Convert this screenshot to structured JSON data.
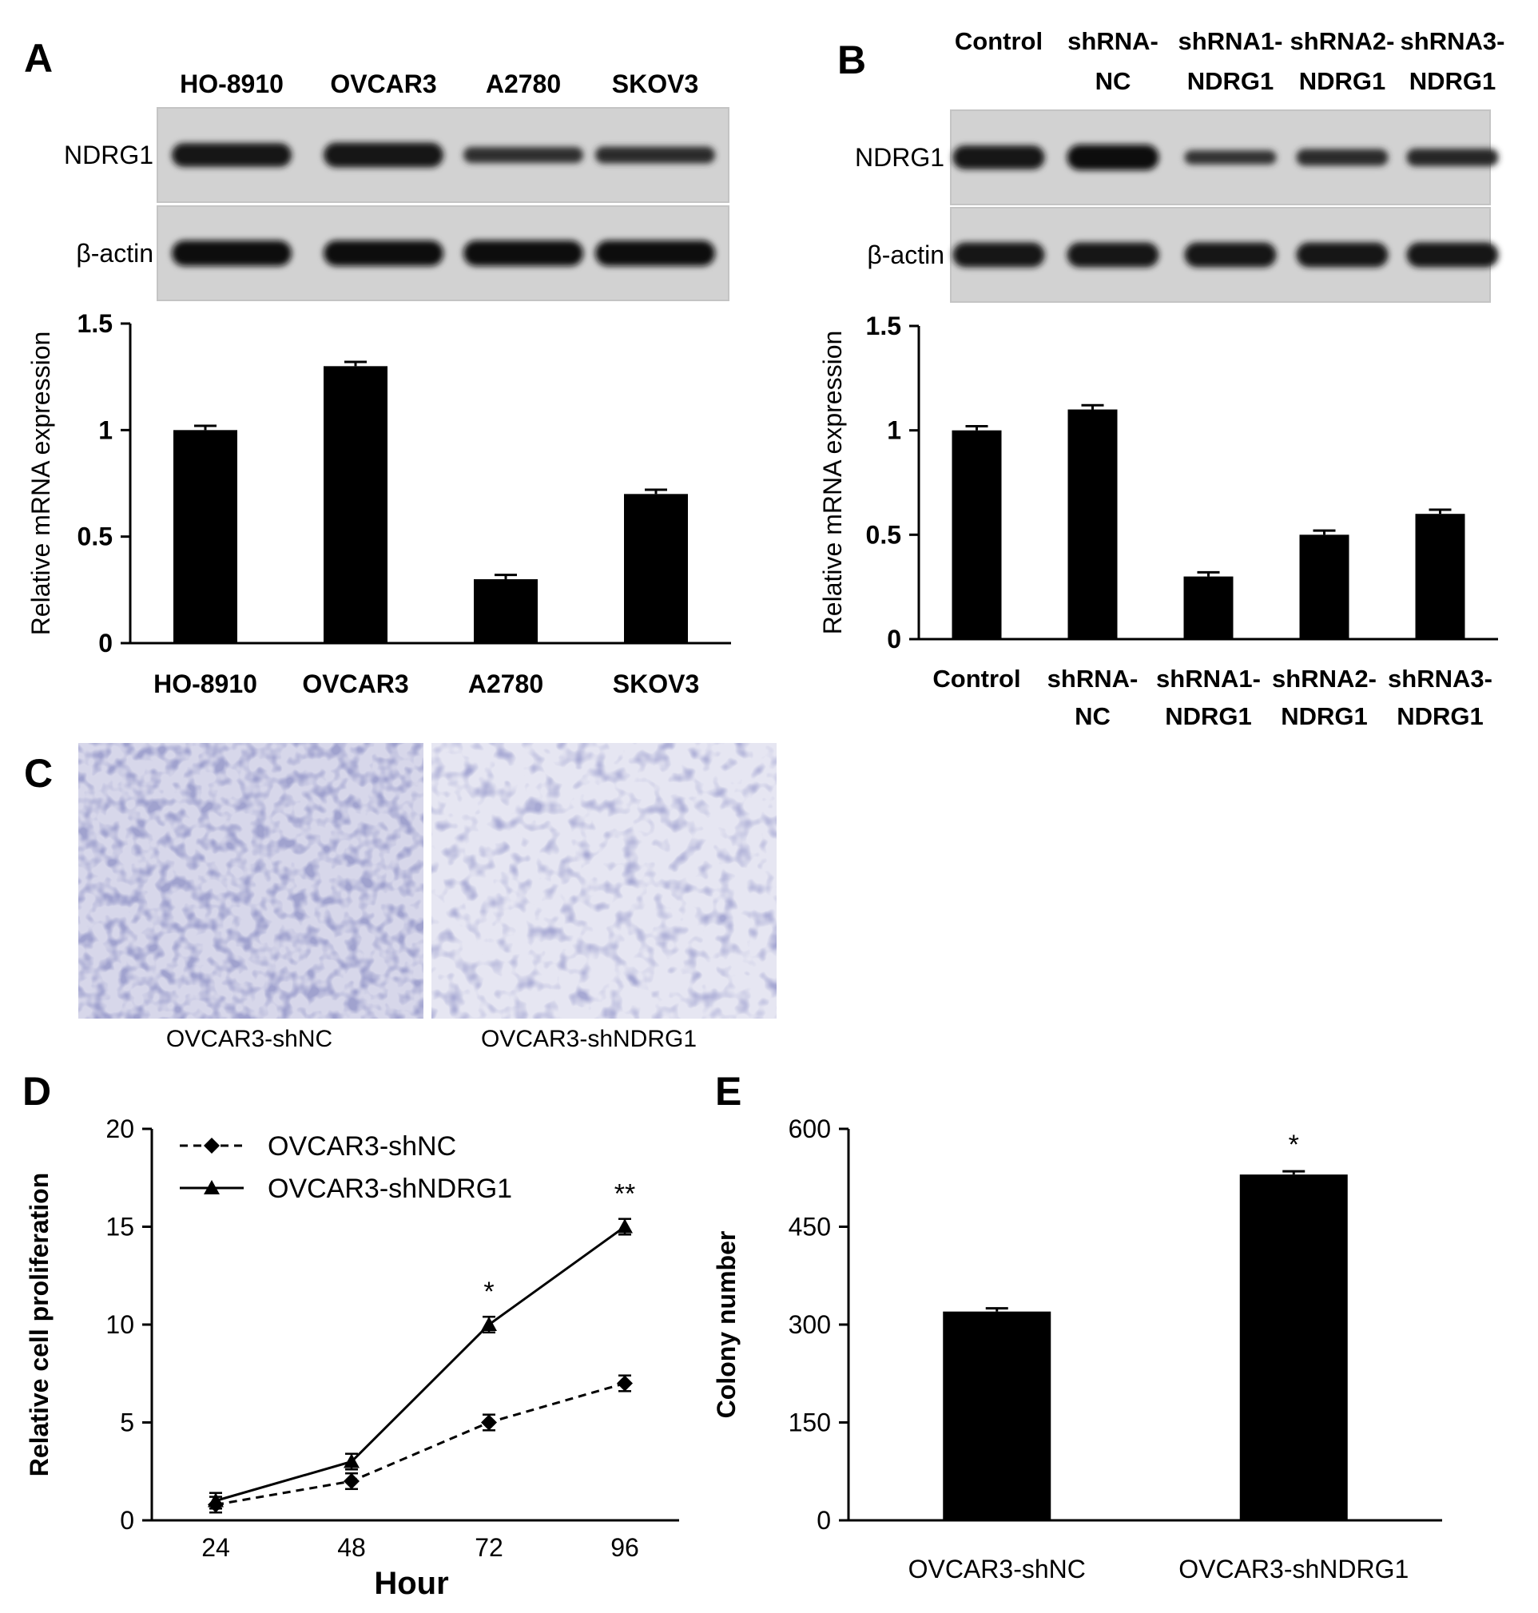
{
  "panels": {
    "A": {
      "letter": "A",
      "blot": {
        "lanes": [
          "HO-8910",
          "OVCAR3",
          "A2780",
          "SKOV3"
        ],
        "rows": [
          {
            "label": "NDRG1",
            "intensity": [
              0.9,
              0.95,
              0.45,
              0.5
            ]
          },
          {
            "label": "β-actin",
            "intensity": [
              1,
              1,
              1,
              1
            ]
          }
        ]
      }
    },
    "B": {
      "letter": "B",
      "blot": {
        "lanes": [
          [
            "Control"
          ],
          [
            "shRNA-",
            "NC"
          ],
          [
            "shRNA1-",
            "NDRG1"
          ],
          [
            "shRNA2-",
            "NDRG1"
          ],
          [
            "shRNA3-",
            "NDRG1"
          ]
        ],
        "rows": [
          {
            "label": "NDRG1",
            "intensity": [
              0.9,
              1,
              0.35,
              0.5,
              0.55
            ]
          },
          {
            "label": "β-actin",
            "intensity": [
              0.95,
              0.95,
              0.95,
              0.95,
              0.95
            ]
          }
        ]
      }
    },
    "C": {
      "letter": "C",
      "images": [
        "OVCAR3-shNC",
        "OVCAR3-shNDRG1"
      ]
    },
    "D": {
      "letter": "D"
    },
    "E": {
      "letter": "E"
    }
  },
  "chart_data": [
    {
      "panel": "A",
      "type": "bar",
      "categories": [
        "HO-8910",
        "OVCAR3",
        "A2780",
        "SKOV3"
      ],
      "values": [
        1.0,
        1.3,
        0.3,
        0.7
      ],
      "errors": [
        0.02,
        0.02,
        0.02,
        0.02
      ],
      "ylabel": "Relative mRNA expression",
      "ylim": [
        0,
        1.5
      ],
      "yticks": [
        0,
        0.5,
        1,
        1.5
      ],
      "ytick_labels": [
        "0",
        "0.5",
        "1",
        "1.5"
      ],
      "grid": false
    },
    {
      "panel": "B",
      "type": "bar",
      "categories": [
        [
          "Control"
        ],
        [
          "shRNA-",
          "NC"
        ],
        [
          "shRNA1-",
          "NDRG1"
        ],
        [
          "shRNA2-",
          "NDRG1"
        ],
        [
          "shRNA3-",
          "NDRG1"
        ]
      ],
      "values": [
        1.0,
        1.1,
        0.3,
        0.5,
        0.6
      ],
      "errors": [
        0.02,
        0.02,
        0.02,
        0.02,
        0.02
      ],
      "ylabel": "Relative mRNA expression",
      "ylim": [
        0,
        1.5
      ],
      "yticks": [
        0,
        0.5,
        1,
        1.5
      ],
      "ytick_labels": [
        "0",
        "0.5",
        "1",
        "1.5"
      ],
      "grid": false
    },
    {
      "panel": "D",
      "type": "line",
      "x": [
        24,
        48,
        72,
        96
      ],
      "xlabel": "Hour",
      "ylabel": "Relative cell proliferation",
      "ylim": [
        0,
        20
      ],
      "yticks": [
        0,
        5,
        10,
        15,
        20
      ],
      "series": [
        {
          "name": "OVCAR3-shNC",
          "values": [
            0.8,
            2,
            5,
            7
          ],
          "errors": [
            0.4,
            0.4,
            0.4,
            0.4
          ],
          "style": "dashed",
          "marker": "diamond"
        },
        {
          "name": "OVCAR3-shNDRG1",
          "values": [
            1,
            3,
            10,
            15
          ],
          "errors": [
            0.4,
            0.4,
            0.4,
            0.4
          ],
          "style": "solid",
          "marker": "triangle"
        }
      ],
      "annotations": [
        {
          "x": 72,
          "text": "*"
        },
        {
          "x": 96,
          "text": "**"
        }
      ],
      "legend": "top-left",
      "grid": false
    },
    {
      "panel": "E",
      "type": "bar",
      "categories": [
        "OVCAR3-shNC",
        "OVCAR3-shNDRG1"
      ],
      "values": [
        320,
        530
      ],
      "errors": [
        5,
        5
      ],
      "ylabel": "Colony number",
      "ylim": [
        0,
        600
      ],
      "yticks": [
        0,
        150,
        300,
        450,
        600
      ],
      "annotations": [
        {
          "category": "OVCAR3-shNDRG1",
          "text": "*"
        }
      ],
      "grid": false
    }
  ]
}
